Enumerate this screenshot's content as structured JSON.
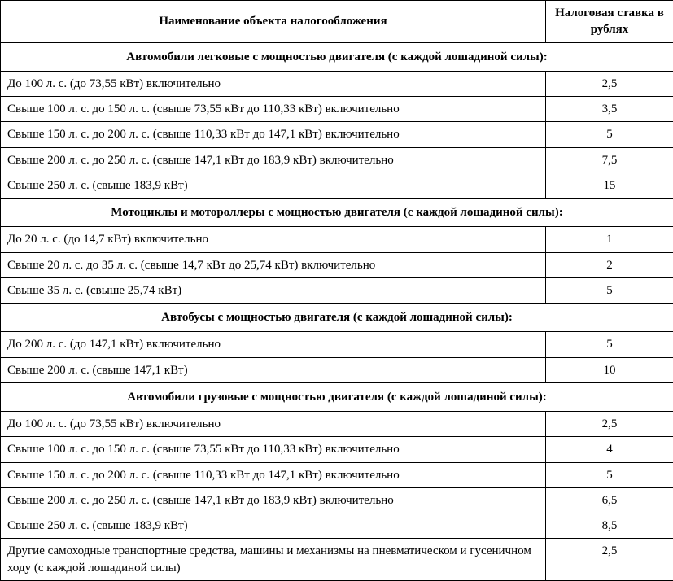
{
  "headers": {
    "name": "Наименование объекта налогообложения",
    "rate": "Налоговая ставка в рублях"
  },
  "sections": [
    {
      "title": "Автомобили легковые с мощностью двигателя (с каждой лошадиной силы):",
      "rows": [
        {
          "name": "До 100 л. с. (до 73,55 кВт) включительно",
          "rate": "2,5"
        },
        {
          "name": "Свыше 100 л. с. до 150 л. с. (свыше 73,55 кВт до 110,33 кВт) включительно",
          "rate": "3,5"
        },
        {
          "name": "Свыше 150 л. с. до 200 л. с. (свыше 110,33 кВт до 147,1 кВт) включительно",
          "rate": "5"
        },
        {
          "name": "Свыше 200 л. с. до 250 л. с. (свыше 147,1 кВт до 183,9 кВт) включительно",
          "rate": "7,5"
        },
        {
          "name": "Свыше 250 л. с. (свыше 183,9 кВт)",
          "rate": "15"
        }
      ]
    },
    {
      "title": "Мотоциклы и мотороллеры с мощностью двигателя (с каждой лошадиной силы):",
      "rows": [
        {
          "name": "До 20 л. с. (до 14,7 кВт) включительно",
          "rate": "1"
        },
        {
          "name": "Свыше 20 л. с. до 35 л. с. (свыше 14,7 кВт до 25,74 кВт) включительно",
          "rate": "2"
        },
        {
          "name": "Свыше 35 л. с. (свыше 25,74 кВт)",
          "rate": "5"
        }
      ]
    },
    {
      "title": "Автобусы с мощностью двигателя (с каждой лошадиной силы):",
      "rows": [
        {
          "name": "До 200 л. с. (до 147,1 кВт) включительно",
          "rate": "5"
        },
        {
          "name": "Свыше 200 л. с. (свыше 147,1 кВт)",
          "rate": "10"
        }
      ]
    },
    {
      "title": "Автомобили грузовые с мощностью двигателя (с каждой лошадиной силы):",
      "rows": [
        {
          "name": "До 100 л. с. (до 73,55 кВт) включительно",
          "rate": "2,5"
        },
        {
          "name": "Свыше 100 л. с. до 150 л. с. (свыше 73,55 кВт до 110,33 кВт) включительно",
          "rate": "4"
        },
        {
          "name": "Свыше 150 л. с. до 200 л. с. (свыше 110,33 кВт до 147,1 кВт) включительно",
          "rate": "5"
        },
        {
          "name": "Свыше 200 л. с. до 250 л. с. (свыше 147,1 кВт до 183,9 кВт) включительно",
          "rate": "6,5"
        },
        {
          "name": "Свыше 250 л. с. (свыше 183,9 кВт)",
          "rate": "8,5"
        },
        {
          "name": "Другие самоходные транспортные средства, машины и механизмы на пневматическом и гусеничном ходу (с каждой лошадиной силы)",
          "rate": "2,5"
        }
      ]
    }
  ]
}
